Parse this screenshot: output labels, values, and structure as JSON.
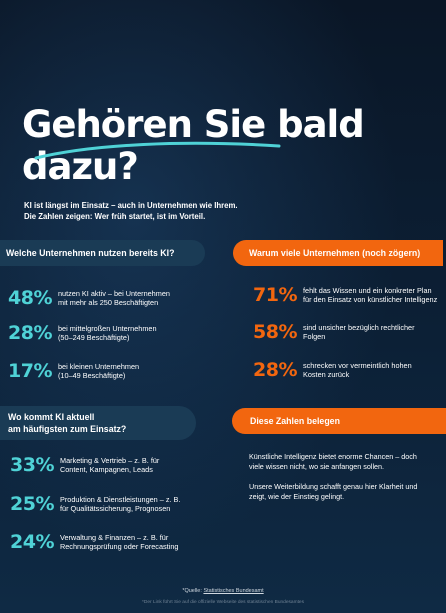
{
  "hero": {
    "title_line1": "Gehören Sie bald",
    "title_line2": "dazu?",
    "intro_line1": "KI ist längst im Einsatz – auch in Unternehmen wie Ihrem.",
    "intro_line2": "Die Zahlen zeigen: Wer früh startet, ist im Vorteil."
  },
  "usage": {
    "heading": "Welche Unternehmen nutzen bereits KI?",
    "items": [
      {
        "pct": "48%",
        "line1": "nutzen KI aktiv – bei Unternehmen",
        "line2": "mit mehr als 250 Beschäftigten"
      },
      {
        "pct": "28%",
        "line1": "bei mittelgroßen Unternehmen",
        "line2": "(50–249 Beschäftigte)"
      },
      {
        "pct": "17%",
        "line1": "bei kleinen Unternehmen",
        "line2": "(10–49 Beschäftigte)"
      }
    ]
  },
  "reasons": {
    "heading": "Warum viele Unternehmen (noch zögern)",
    "items": [
      {
        "pct": "71%",
        "line1": "fehlt das Wissen und ein konkreter Plan",
        "line2": "für den Einsatz von künstlicher Intelligenz"
      },
      {
        "pct": "58%",
        "line1": "sind unsicher bezüglich rechtlicher",
        "line2": "Folgen"
      },
      {
        "pct": "28%",
        "line1": "schrecken vor vermeintlich hohen",
        "line2": "Kosten zurück"
      }
    ]
  },
  "areas": {
    "heading_line1": "Wo kommt KI aktuell",
    "heading_line2": "am häufigsten zum Einsatz?",
    "items": [
      {
        "pct": "33%",
        "line1": "Marketing & Vertrieb – z. B. für",
        "line2": "Content, Kampagnen, Leads"
      },
      {
        "pct": "25%",
        "line1": "Produktion & Dienstleistungen – z. B.",
        "line2": "für Qualitätssicherung, Prognosen"
      },
      {
        "pct": "24%",
        "line1": "Verwaltung & Finanzen – z. B. für",
        "line2": "Rechnungsprüfung oder Forecasting"
      }
    ]
  },
  "evidence": {
    "heading": "Diese Zahlen belegen",
    "para1_line1": "Künstliche Intelligenz bietet enorme Chancen – doch",
    "para1_line2": "viele wissen nicht, wo sie anfangen sollen.",
    "para2_line1": "Unsere Weiterbildung schafft genau hier Klarheit und",
    "para2_line2": "zeigt, wie der Einstieg gelingt."
  },
  "source": {
    "prefix": "*Quelle: ",
    "link": "Statistisches Bundesamt",
    "footnote": "*Der Link führt Sie auf die offizielle Webseite des statistischen Bundesamtes"
  },
  "colors": {
    "teal": "#4fd2d6",
    "orange": "#f2660f",
    "navy_pill": "#1a3b55"
  }
}
